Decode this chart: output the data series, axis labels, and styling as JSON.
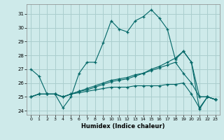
{
  "xlabel": "Humidex (Indice chaleur)",
  "xlim": [
    -0.5,
    23.5
  ],
  "ylim": [
    23.7,
    31.7
  ],
  "yticks": [
    24,
    25,
    26,
    27,
    28,
    29,
    30,
    31
  ],
  "xticks": [
    0,
    1,
    2,
    3,
    4,
    5,
    6,
    7,
    8,
    9,
    10,
    11,
    12,
    13,
    14,
    15,
    16,
    17,
    18,
    19,
    20,
    21,
    22,
    23
  ],
  "bg_color": "#ceeaea",
  "grid_color": "#aacece",
  "line_color": "#006666",
  "series": [
    [
      27.0,
      26.5,
      25.2,
      25.2,
      24.2,
      25.0,
      26.7,
      27.5,
      27.5,
      28.9,
      30.5,
      29.9,
      29.7,
      30.5,
      30.8,
      31.3,
      30.7,
      29.9,
      27.7,
      28.3,
      27.5,
      24.1,
      25.0,
      24.8
    ],
    [
      25.0,
      25.2,
      25.2,
      25.2,
      25.0,
      25.2,
      25.4,
      25.6,
      25.8,
      26.0,
      26.2,
      26.3,
      26.4,
      26.6,
      26.7,
      27.0,
      27.2,
      27.5,
      27.8,
      28.3,
      27.5,
      25.0,
      25.0,
      24.8
    ],
    [
      25.0,
      25.2,
      25.2,
      25.2,
      25.0,
      25.2,
      25.4,
      25.5,
      25.7,
      25.9,
      26.1,
      26.2,
      26.3,
      26.5,
      26.7,
      26.9,
      27.1,
      27.3,
      27.5,
      26.7,
      26.0,
      25.0,
      25.0,
      24.8
    ],
    [
      25.0,
      25.2,
      25.2,
      25.2,
      25.0,
      25.2,
      25.3,
      25.4,
      25.5,
      25.6,
      25.7,
      25.7,
      25.7,
      25.8,
      25.8,
      25.8,
      25.8,
      25.9,
      25.9,
      26.0,
      25.2,
      24.2,
      25.0,
      24.8
    ]
  ]
}
